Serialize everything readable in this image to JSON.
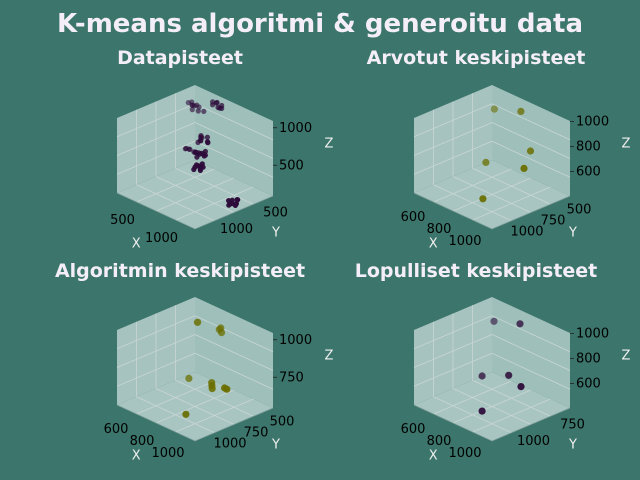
{
  "figure": {
    "title": "K-means algoritmi & generoitu data",
    "colors": {
      "background": "#3b756b",
      "dark_point": "#2d0b3a",
      "olive_point": "#6b6f00"
    }
  },
  "chart_data": [
    {
      "type": "scatter3d",
      "title": "Datapisteet",
      "xlabel": "X",
      "ylabel": "Y",
      "zlabel": "Z",
      "xticks": [
        "500",
        "1000"
      ],
      "yticks": [
        "500",
        "1000"
      ],
      "zticks": [
        "500",
        "1000"
      ],
      "xlim": [
        200,
        1450
      ],
      "ylim": [
        350,
        1300
      ],
      "zlim": [
        300,
        1300
      ],
      "color": "#2d0b3a",
      "points": [
        [
          280,
          1200,
          1150
        ],
        [
          320,
          1180,
          1130
        ],
        [
          350,
          1150,
          1160
        ],
        [
          300,
          1220,
          1100
        ],
        [
          380,
          1130,
          1120
        ],
        [
          330,
          1250,
          1080
        ],
        [
          410,
          1180,
          1090
        ],
        [
          290,
          1150,
          1170
        ],
        [
          360,
          1200,
          1140
        ],
        [
          420,
          1240,
          1060
        ],
        [
          620,
          1240,
          1250
        ],
        [
          660,
          1220,
          1280
        ],
        [
          700,
          1200,
          1240
        ],
        [
          640,
          1180,
          1260
        ],
        [
          720,
          1230,
          1220
        ],
        [
          680,
          1260,
          1230
        ],
        [
          600,
          1210,
          1270
        ],
        [
          740,
          1190,
          1250
        ],
        [
          780,
          930,
          1000
        ],
        [
          820,
          900,
          980
        ],
        [
          860,
          950,
          1020
        ],
        [
          800,
          880,
          960
        ],
        [
          900,
          920,
          990
        ],
        [
          850,
          870,
          1010
        ],
        [
          760,
          960,
          970
        ],
        [
          930,
          900,
          1000
        ],
        [
          880,
          940,
          960
        ],
        [
          810,
          910,
          1040
        ],
        [
          1050,
          700,
          1000
        ],
        [
          1080,
          730,
          980
        ],
        [
          1110,
          690,
          1020
        ],
        [
          1060,
          670,
          960
        ],
        [
          1130,
          720,
          990
        ],
        [
          1090,
          750,
          1010
        ],
        [
          1040,
          710,
          970
        ],
        [
          1150,
          690,
          1000
        ],
        [
          1250,
          520,
          1000
        ],
        [
          1280,
          550,
          980
        ],
        [
          1310,
          500,
          1020
        ],
        [
          1260,
          480,
          960
        ],
        [
          1330,
          540,
          990
        ],
        [
          1290,
          560,
          1010
        ],
        [
          1240,
          510,
          970
        ],
        [
          1350,
          490,
          1000
        ],
        [
          1300,
          530,
          940
        ],
        [
          500,
          1000,
          700
        ],
        [
          540,
          980,
          720
        ],
        [
          580,
          1020,
          680
        ],
        [
          520,
          950,
          740
        ],
        [
          610,
          990,
          700
        ],
        [
          560,
          1040,
          660
        ],
        [
          480,
          970,
          710
        ],
        [
          630,
          960,
          730
        ],
        [
          590,
          1010,
          690
        ],
        [
          1350,
          880,
          400
        ],
        [
          1380,
          850,
          380
        ],
        [
          1410,
          900,
          420
        ],
        [
          1360,
          830,
          360
        ],
        [
          1430,
          870,
          390
        ],
        [
          1390,
          910,
          410
        ],
        [
          1340,
          860,
          370
        ],
        [
          1450,
          840,
          400
        ],
        [
          1400,
          880,
          350
        ],
        [
          1370,
          820,
          430
        ]
      ]
    },
    {
      "type": "scatter3d",
      "title": "Arvotut keskipisteet",
      "xlabel": "X",
      "ylabel": "Y",
      "zlabel": "Z",
      "xticks": [
        "600",
        "800",
        "1000"
      ],
      "yticks": [
        "500",
        "750",
        "1000"
      ],
      "zticks": [
        "600",
        "800",
        "1000"
      ],
      "xlim": [
        500,
        1150
      ],
      "ylim": [
        430,
        1250
      ],
      "zlim": [
        450,
        1250
      ],
      "color": "#6b6f00",
      "points": [
        [
          560,
          1200,
          1050
        ],
        [
          820,
          1150,
          1200
        ],
        [
          790,
          820,
          780
        ],
        [
          1060,
          880,
          850
        ],
        [
          1050,
          460,
          700
        ],
        [
          940,
          1100,
          870
        ]
      ]
    },
    {
      "type": "scatter3d",
      "title": "Algoritmin keskipisteet",
      "xlabel": "X",
      "ylabel": "Y",
      "zlabel": "Z",
      "xticks": [
        "600",
        "800",
        "1000"
      ],
      "yticks": [
        "500",
        "750",
        "1000"
      ],
      "zticks": [
        "750",
        "1000"
      ],
      "xlim": [
        500,
        1150
      ],
      "ylim": [
        430,
        1250
      ],
      "zlim": [
        500,
        1250
      ],
      "color": "#6b6f00",
      "points": [
        [
          560,
          1200,
          1050
        ],
        [
          570,
          1190,
          1060
        ],
        [
          790,
          1140,
          1130
        ],
        [
          800,
          1150,
          1100
        ],
        [
          810,
          1130,
          1160
        ],
        [
          790,
          820,
          770
        ],
        [
          950,
          860,
          770
        ],
        [
          960,
          850,
          750
        ],
        [
          940,
          870,
          790
        ],
        [
          1080,
          830,
          830
        ],
        [
          1090,
          840,
          820
        ],
        [
          1050,
          460,
          700
        ]
      ]
    },
    {
      "type": "scatter3d",
      "title": "Lopulliset keskipisteet",
      "xlabel": "X",
      "ylabel": "Y",
      "zlabel": "Z",
      "xticks": [
        "600",
        "800",
        "1000"
      ],
      "yticks": [
        "750",
        "1000"
      ],
      "zticks": [
        "600",
        "800",
        "1000"
      ],
      "xlim": [
        500,
        1150
      ],
      "ylim": [
        500,
        1250
      ],
      "zlim": [
        450,
        1250
      ],
      "color": "#2d0b3a",
      "points": [
        [
          560,
          1200,
          1050
        ],
        [
          820,
          1150,
          1200
        ],
        [
          790,
          820,
          780
        ],
        [
          960,
          880,
          860
        ],
        [
          1080,
          860,
          820
        ],
        [
          1050,
          520,
          700
        ]
      ]
    }
  ]
}
